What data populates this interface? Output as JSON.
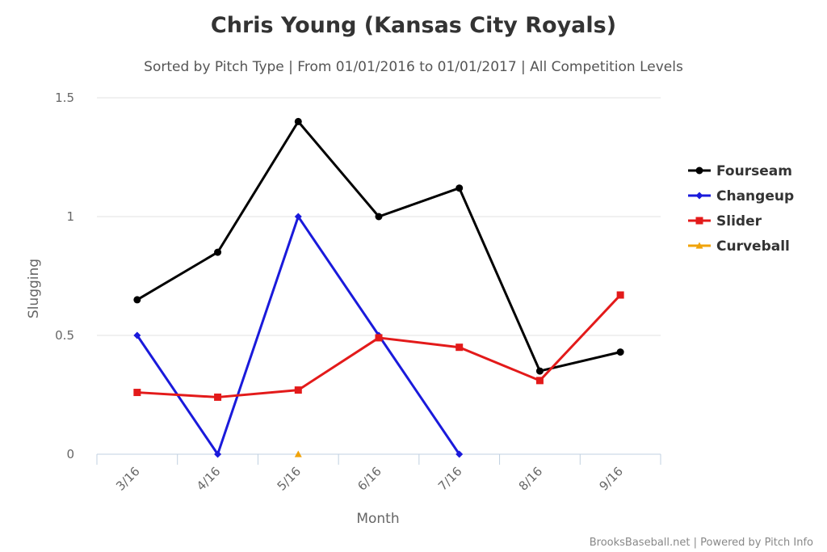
{
  "chart_data": {
    "type": "line",
    "title": "Chris Young (Kansas City Royals)",
    "subtitle": "Sorted by Pitch Type | From 01/01/2016 to 01/01/2017 | All Competition Levels",
    "xlabel": "Month",
    "ylabel": "Slugging",
    "categories": [
      "3/16",
      "4/16",
      "5/16",
      "6/16",
      "7/16",
      "8/16",
      "9/16"
    ],
    "ylim": [
      0,
      1.5
    ],
    "yticks": [
      {
        "value": 0,
        "label": "0"
      },
      {
        "value": 0.5,
        "label": "0.5"
      },
      {
        "value": 1,
        "label": "1"
      },
      {
        "value": 1.5,
        "label": "1.5"
      }
    ],
    "grid": true,
    "legend_position": "right",
    "series": [
      {
        "name": "Fourseam",
        "color": "#000000",
        "marker": "circle",
        "values": [
          0.65,
          0.85,
          1.4,
          1.0,
          1.12,
          0.35,
          0.43
        ]
      },
      {
        "name": "Changeup",
        "color": "#1a1adb",
        "marker": "diamond",
        "values": [
          0.5,
          0.0,
          1.0,
          0.5,
          0.0,
          null,
          null
        ]
      },
      {
        "name": "Slider",
        "color": "#e31a1a",
        "marker": "square",
        "values": [
          0.26,
          0.24,
          0.27,
          0.49,
          0.45,
          0.31,
          0.67
        ]
      },
      {
        "name": "Curveball",
        "color": "#f0a30a",
        "marker": "triangle",
        "values": [
          null,
          null,
          0.0,
          null,
          null,
          null,
          null
        ]
      }
    ]
  },
  "credits": "BrooksBaseball.net | Powered by Pitch Info"
}
